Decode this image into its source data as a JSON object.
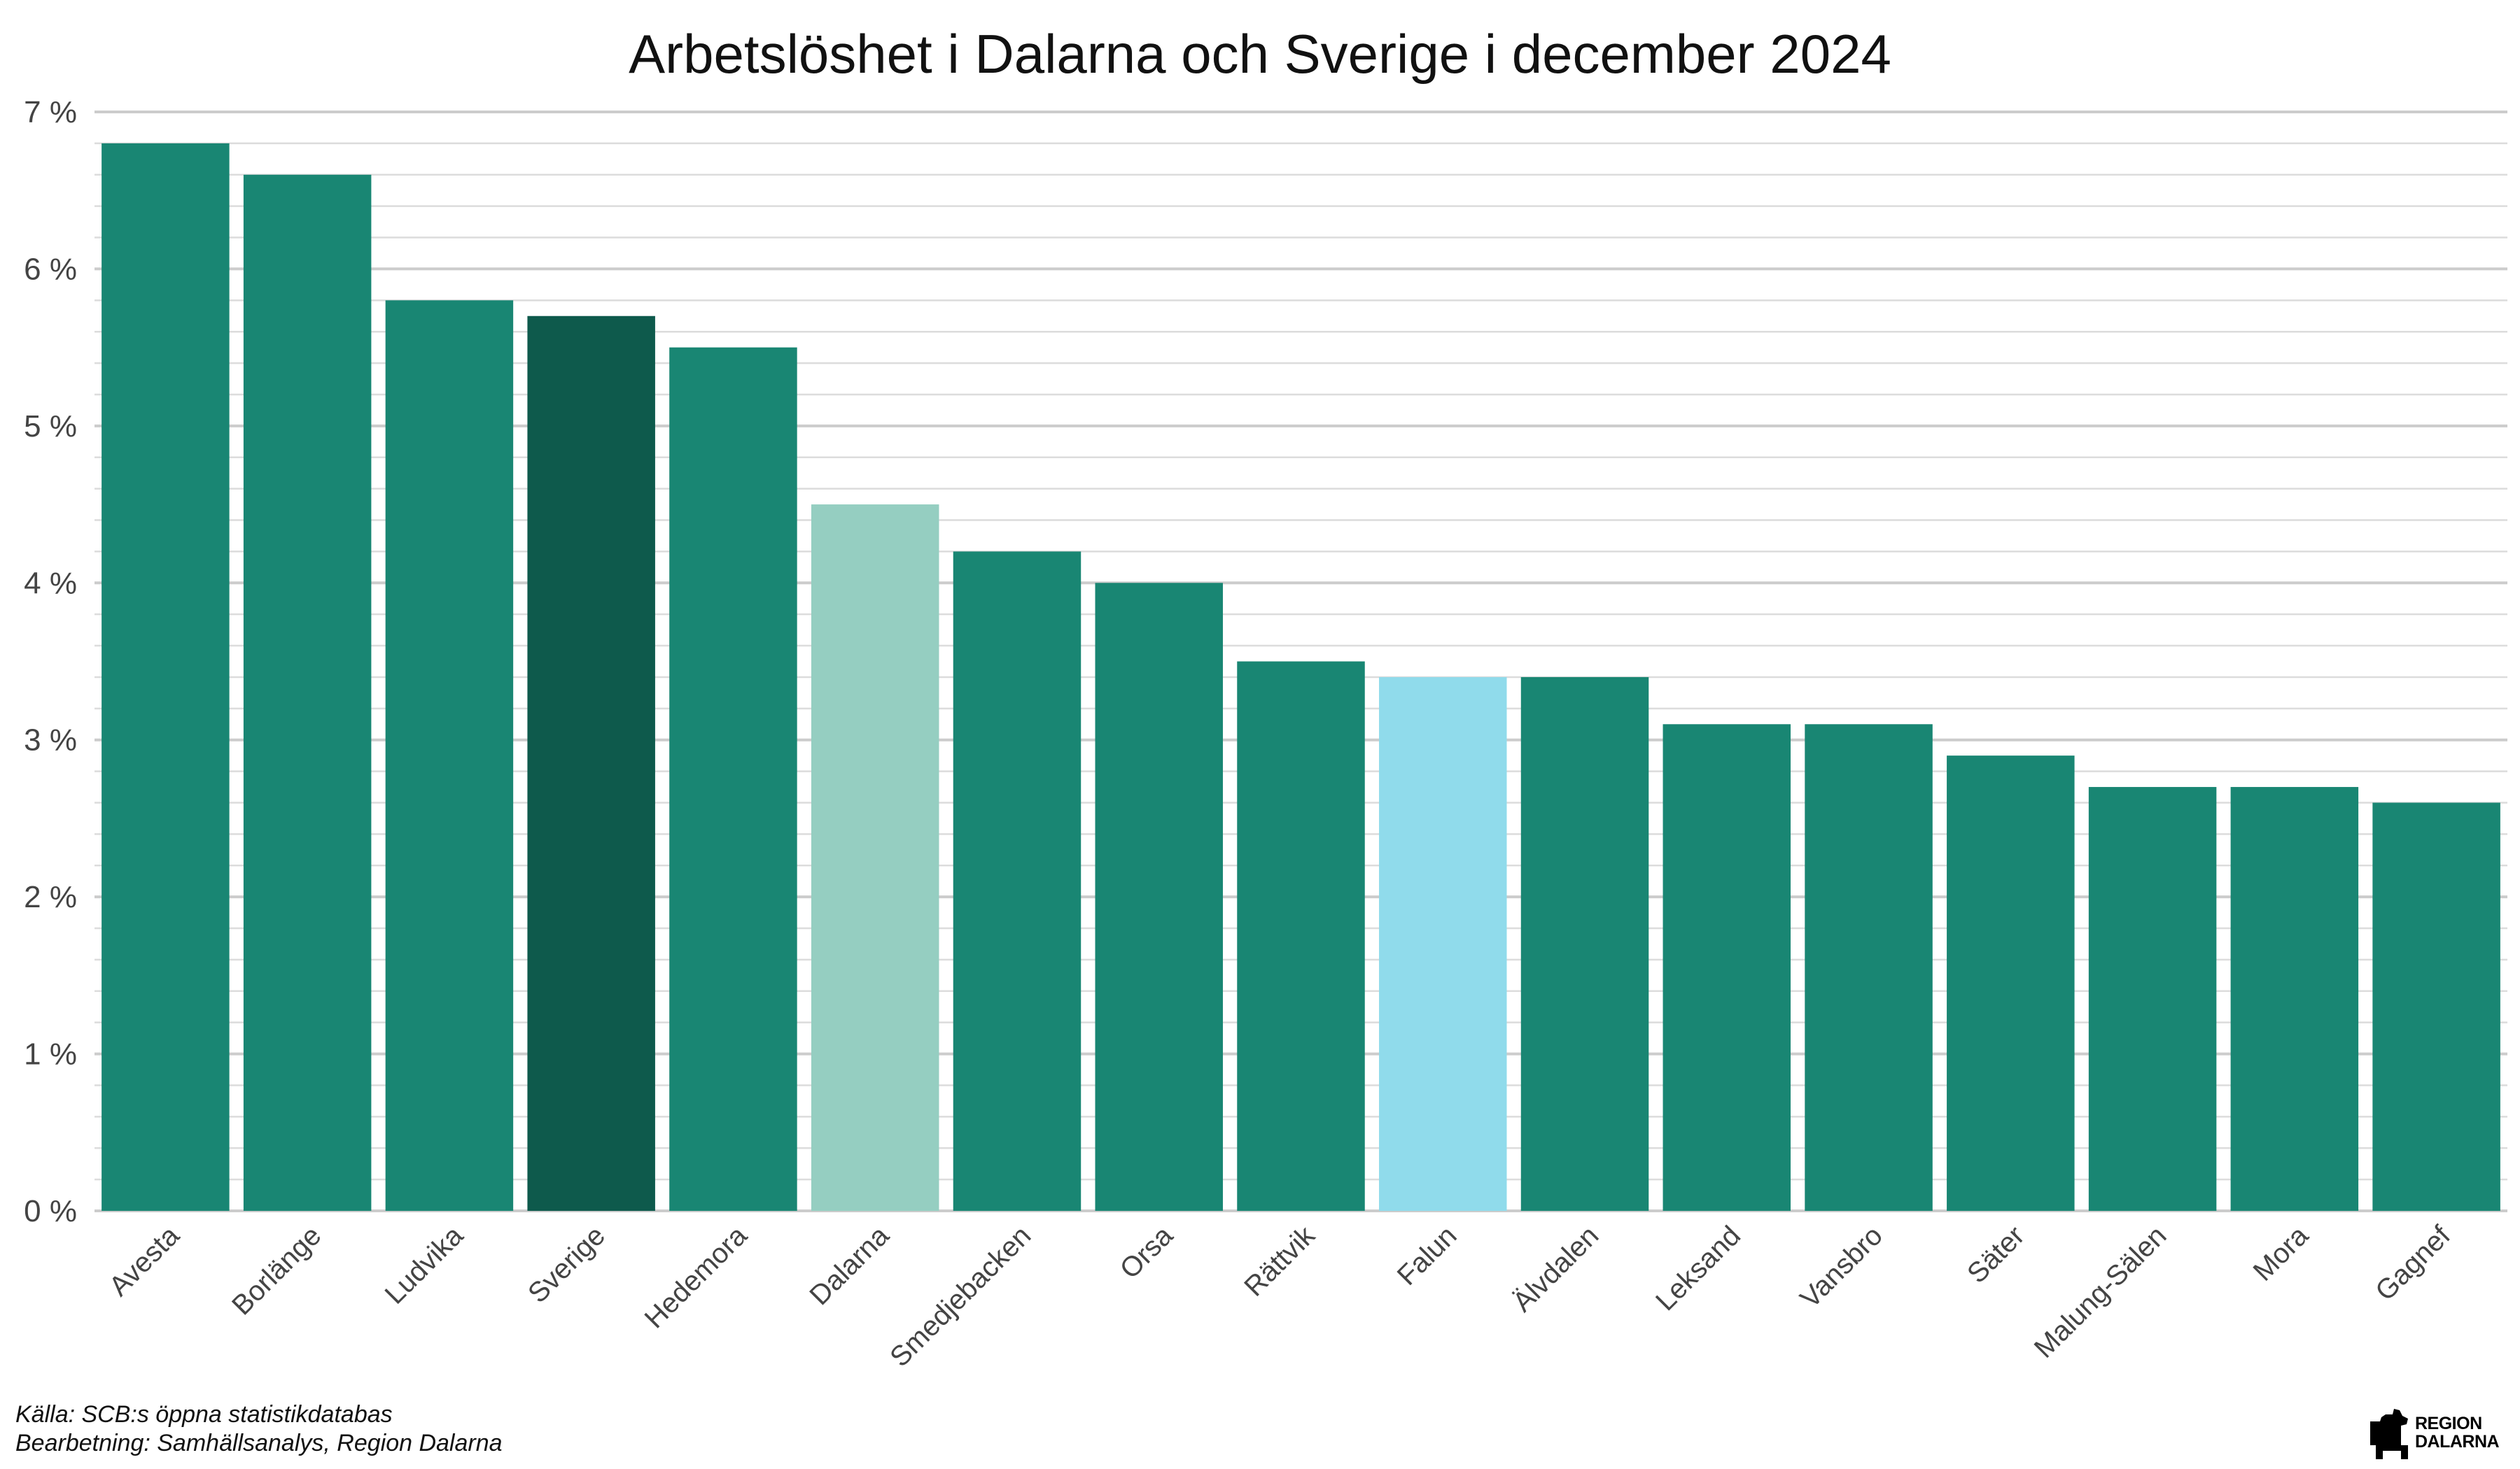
{
  "chart_data": {
    "type": "bar",
    "title": "Arbetslöshet i Dalarna och Sverige i december 2024",
    "xlabel": "",
    "ylabel": "",
    "categories": [
      "Avesta",
      "Borlänge",
      "Ludvika",
      "Sverige",
      "Hedemora",
      "Dalarna",
      "Smedjebacken",
      "Orsa",
      "Rättvik",
      "Falun",
      "Älvdalen",
      "Leksand",
      "Vansbro",
      "Säter",
      "Malung-Sälen",
      "Mora",
      "Gagnef"
    ],
    "values": [
      6.8,
      6.6,
      5.8,
      5.7,
      5.5,
      4.5,
      4.2,
      4.0,
      3.5,
      3.4,
      3.4,
      3.1,
      3.1,
      2.9,
      2.7,
      2.7,
      2.6
    ],
    "colors": [
      "#198673",
      "#198673",
      "#198673",
      "#0e5a4c",
      "#198673",
      "#95cec1",
      "#198673",
      "#198673",
      "#198673",
      "#90dbeb",
      "#198673",
      "#198673",
      "#198673",
      "#198673",
      "#198673",
      "#198673",
      "#198673"
    ],
    "ylim": [
      0,
      7
    ],
    "yticks": [
      0,
      1,
      2,
      3,
      4,
      5,
      6,
      7
    ],
    "ytick_labels": [
      "0 %",
      "1 %",
      "2 %",
      "3 %",
      "4 %",
      "5 %",
      "6 %",
      "7 %"
    ],
    "minor_grid_step": 0.2,
    "grid": true,
    "legend": "none"
  },
  "footer": {
    "source": "Källa: SCB:s öppna statistikdatabas",
    "processing": "Bearbetning: Samhällsanalys, Region Dalarna"
  },
  "logo": {
    "icon": "dala-horse-icon",
    "line1": "REGION",
    "line2": "DALARNA"
  }
}
